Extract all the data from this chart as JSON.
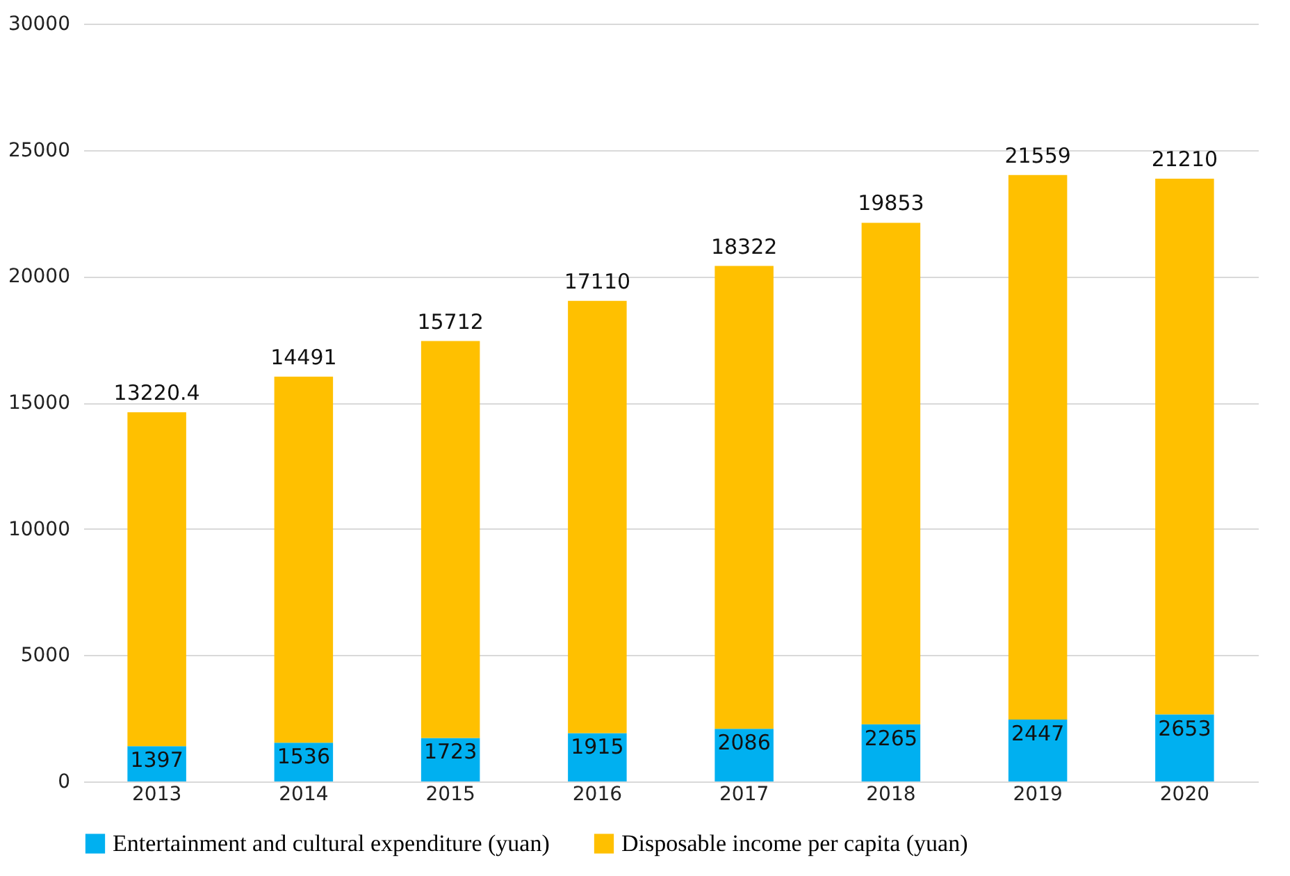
{
  "chart_data": {
    "type": "bar",
    "stacked": true,
    "categories": [
      "2013",
      "2014",
      "2015",
      "2016",
      "2017",
      "2018",
      "2019",
      "2020"
    ],
    "series": [
      {
        "name": "Entertainment and cultural expenditure (yuan)",
        "color": "#00b0f0",
        "values": [
          1397,
          1536,
          1723,
          1915,
          2086,
          2265,
          2447,
          2653
        ]
      },
      {
        "name": "Disposable income per capita (yuan)",
        "color": "#ffc000",
        "values": [
          13220.4,
          14491,
          15712,
          17110,
          18322,
          19853,
          21559,
          21210
        ]
      }
    ],
    "ylim": [
      0,
      30000
    ],
    "yticks": [
      0,
      5000,
      10000,
      15000,
      20000,
      25000,
      30000
    ],
    "grid": "y",
    "legend": "bottom",
    "data_labels": true
  }
}
